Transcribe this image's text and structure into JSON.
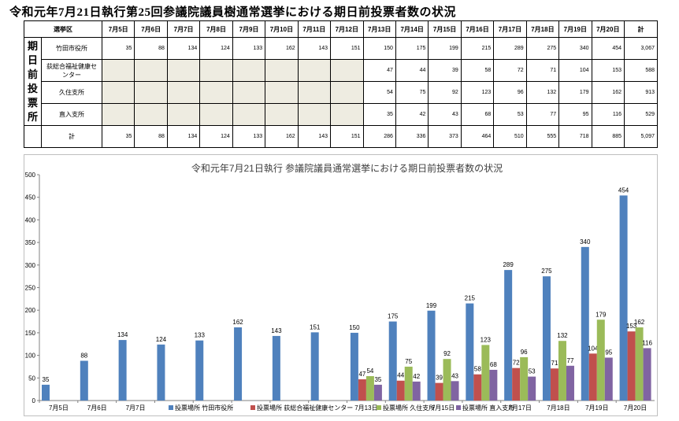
{
  "title": "令和元年7月21日執行第25回参議院議員樹通常選挙における期日前投票者数の状況",
  "table": {
    "header_corner": "選挙区",
    "side_label": "期日前投票所",
    "dates": [
      "7月5日",
      "7月6日",
      "7月7日",
      "7月8日",
      "7月9日",
      "7月10日",
      "7月11日",
      "7月12日",
      "7月13日",
      "7月14日",
      "7月15日",
      "7月16日",
      "7月17日",
      "7月18日",
      "7月19日",
      "7月20日"
    ],
    "total_header": "計",
    "rows": [
      {
        "label": "竹田市役所",
        "values": [
          "35",
          "88",
          "134",
          "124",
          "133",
          "162",
          "143",
          "151",
          "150",
          "175",
          "199",
          "215",
          "289",
          "275",
          "340",
          "454"
        ],
        "total": "3,067"
      },
      {
        "label": "荻総合福祉健康センター",
        "values": [
          "",
          "",
          "",
          "",
          "",
          "",
          "",
          "",
          "47",
          "44",
          "39",
          "58",
          "72",
          "71",
          "104",
          "153"
        ],
        "total": "588"
      },
      {
        "label": "久住支所",
        "values": [
          "",
          "",
          "",
          "",
          "",
          "",
          "",
          "",
          "54",
          "75",
          "92",
          "123",
          "96",
          "132",
          "179",
          "162"
        ],
        "total": "913"
      },
      {
        "label": "直入支所",
        "values": [
          "",
          "",
          "",
          "",
          "",
          "",
          "",
          "",
          "35",
          "42",
          "43",
          "68",
          "53",
          "77",
          "95",
          "116"
        ],
        "total": "529"
      },
      {
        "label": "計",
        "values": [
          "35",
          "88",
          "134",
          "124",
          "133",
          "162",
          "143",
          "151",
          "286",
          "336",
          "373",
          "464",
          "510",
          "555",
          "718",
          "885"
        ],
        "total": "5,097"
      }
    ]
  },
  "chart_data": {
    "type": "bar",
    "title": "令和元年7月21日執行 参議院議員通常選挙における期日前投票者数の状況",
    "categories": [
      "7月5日",
      "7月6日",
      "7月7日",
      "7月8日",
      "7月9日",
      "7月10日",
      "7月11日",
      "7月12日",
      "7月13日",
      "7月14日",
      "7月15日",
      "7月16日",
      "7月17日",
      "7月18日",
      "7月19日",
      "7月20日"
    ],
    "x_tick_labels": [
      "7月5日",
      "7月6日",
      "7月7日",
      "",
      "",
      "",
      "",
      "",
      "7月13日",
      "",
      "7月15日",
      "",
      "7月17日",
      "7月18日",
      "7月19日",
      "7月20日"
    ],
    "ylim": [
      0,
      500
    ],
    "yticks": [
      0,
      50,
      100,
      150,
      200,
      250,
      300,
      350,
      400,
      450,
      500
    ],
    "grid": false,
    "legend_position": "bottom",
    "series": [
      {
        "name": "投票場所 竹田市役所",
        "color": "#4f81bd",
        "values": [
          35,
          88,
          134,
          124,
          133,
          162,
          143,
          151,
          150,
          175,
          199,
          215,
          289,
          275,
          340,
          454
        ]
      },
      {
        "name": "投票場所 荻総合福祉健康センター",
        "color": "#c0504d",
        "values": [
          null,
          null,
          null,
          null,
          null,
          null,
          null,
          null,
          47,
          44,
          39,
          58,
          72,
          71,
          104,
          153
        ]
      },
      {
        "name": "投票場所 久住支所",
        "color": "#9bbb59",
        "values": [
          null,
          null,
          null,
          null,
          null,
          null,
          null,
          null,
          54,
          75,
          92,
          123,
          96,
          132,
          179,
          162
        ]
      },
      {
        "name": "投票場所 直入支所",
        "color": "#8064a2",
        "values": [
          null,
          null,
          null,
          null,
          null,
          null,
          null,
          null,
          35,
          42,
          43,
          68,
          53,
          77,
          95,
          116
        ]
      }
    ]
  }
}
